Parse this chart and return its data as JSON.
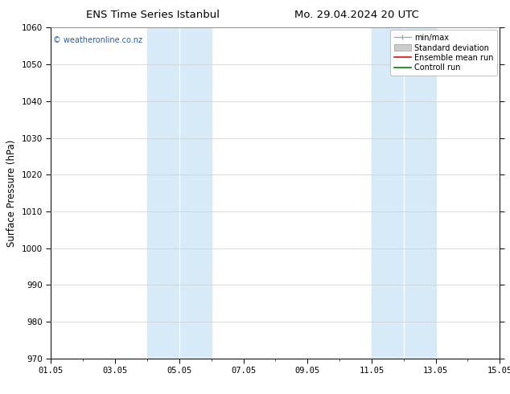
{
  "title_left": "ENS Time Series Istanbul",
  "title_right": "Mo. 29.04.2024 20 UTC",
  "ylabel": "Surface Pressure (hPa)",
  "ylim": [
    970,
    1060
  ],
  "yticks": [
    970,
    980,
    990,
    1000,
    1010,
    1020,
    1030,
    1040,
    1050,
    1060
  ],
  "xlim_num": [
    0,
    14
  ],
  "xtick_positions": [
    0,
    2,
    4,
    6,
    8,
    10,
    12,
    14
  ],
  "xtick_labels": [
    "01.05",
    "03.05",
    "05.05",
    "07.05",
    "09.05",
    "11.05",
    "13.05",
    "15.05"
  ],
  "shade_bands": [
    {
      "xmin": 3.0,
      "xmax": 4.0,
      "color": "#d6eaf8"
    },
    {
      "xmin": 4.0,
      "xmax": 5.0,
      "color": "#d6eaf8"
    },
    {
      "xmin": 10.0,
      "xmax": 11.0,
      "color": "#d6eaf8"
    },
    {
      "xmin": 11.0,
      "xmax": 12.0,
      "color": "#d6eaf8"
    }
  ],
  "shade_dividers": [
    4.0,
    11.0
  ],
  "shade_color": "#d6eaf8",
  "watermark": "© weatheronline.co.nz",
  "legend_items": [
    {
      "label": "min/max",
      "color": "#aaaaaa",
      "lw": 1.0,
      "type": "minmax"
    },
    {
      "label": "Standard deviation",
      "color": "#cccccc",
      "lw": 8,
      "type": "fill"
    },
    {
      "label": "Ensemble mean run",
      "color": "red",
      "lw": 1.2,
      "type": "line"
    },
    {
      "label": "Controll run",
      "color": "green",
      "lw": 1.2,
      "type": "line"
    }
  ],
  "bg_color": "#ffffff",
  "grid_color": "#cccccc",
  "title_fontsize": 9.5,
  "tick_fontsize": 7.5,
  "ylabel_fontsize": 8.5,
  "legend_fontsize": 7.0
}
